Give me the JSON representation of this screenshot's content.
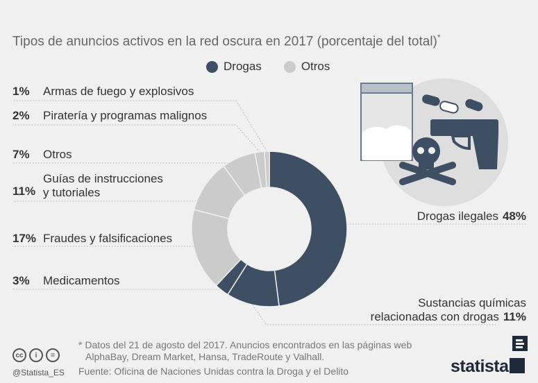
{
  "title": "Tipos de anuncios activos en la red oscura en 2017 (porcentaje del total)",
  "title_mark": "*",
  "colors": {
    "drogas": "#3e4f63",
    "otros": "#cbcbcb",
    "leader": "#bdbdbd"
  },
  "chart_data": {
    "type": "pie",
    "title": "Tipos de anuncios activos en la red oscura en 2017 (porcentaje del total)",
    "legend": [
      "Drogas",
      "Otros"
    ],
    "legend_position": "top",
    "slices": [
      {
        "label": "Drogas ilegales",
        "value": 48,
        "pct": "48%",
        "group": "Drogas"
      },
      {
        "label": "Sustancias químicas relacionadas con drogas",
        "value": 11,
        "pct": "11%",
        "group": "Drogas"
      },
      {
        "label": "Medicamentos",
        "value": 3,
        "pct": "3%",
        "group": "Drogas"
      },
      {
        "label": "Fraudes y falsificaciones",
        "value": 17,
        "pct": "17%",
        "group": "Otros"
      },
      {
        "label": "Guías de instrucciones y tutoriales",
        "value": 11,
        "pct": "11%",
        "group": "Otros"
      },
      {
        "label": "Otros",
        "value": 7,
        "pct": "7%",
        "group": "Otros"
      },
      {
        "label": "Piratería y programas malignos",
        "value": 2,
        "pct": "2%",
        "group": "Otros"
      },
      {
        "label": "Armas de fuego y explosivos",
        "value": 1,
        "pct": "1%",
        "group": "Otros"
      }
    ]
  },
  "labels": {
    "armas": {
      "pct": "1%",
      "text": "Armas de fuego y explosivos"
    },
    "pirateria": {
      "pct": "2%",
      "text": "Piratería y programas malignos"
    },
    "otros": {
      "pct": "7%",
      "text": "Otros"
    },
    "guias": {
      "pct": "11%",
      "line1": "Guías de instrucciones",
      "line2": "y tutoriales"
    },
    "fraudes": {
      "pct": "17%",
      "text": "Fraudes y falsificaciones"
    },
    "medicamentos": {
      "pct": "3%",
      "text": "Medicamentos"
    },
    "drogas_ilegales": {
      "pct": "48%",
      "text": "Drogas ilegales"
    },
    "sustancias": {
      "pct": "11%",
      "line1": "Sustancias químicas",
      "line2": "relacionadas con drogas"
    }
  },
  "legend": {
    "drogas": "Drogas",
    "otros": "Otros"
  },
  "footnote": {
    "line1": "* Datos del 21 de agosto del 2017. Anuncios encontrados en las páginas web",
    "line2": "AlphaBay, Dream Market, Hansa, TradeRoute y Valhall."
  },
  "source": "Fuente: Oficina de Naciones Unidas contra la Droga y el Delito",
  "handle": "@Statista_ES",
  "brand": "statista",
  "icons": [
    "drug-bag-icon",
    "pills-icon",
    "pistol-icon",
    "skull-crossbones-icon",
    "cc-icon",
    "by-icon",
    "nd-icon"
  ]
}
